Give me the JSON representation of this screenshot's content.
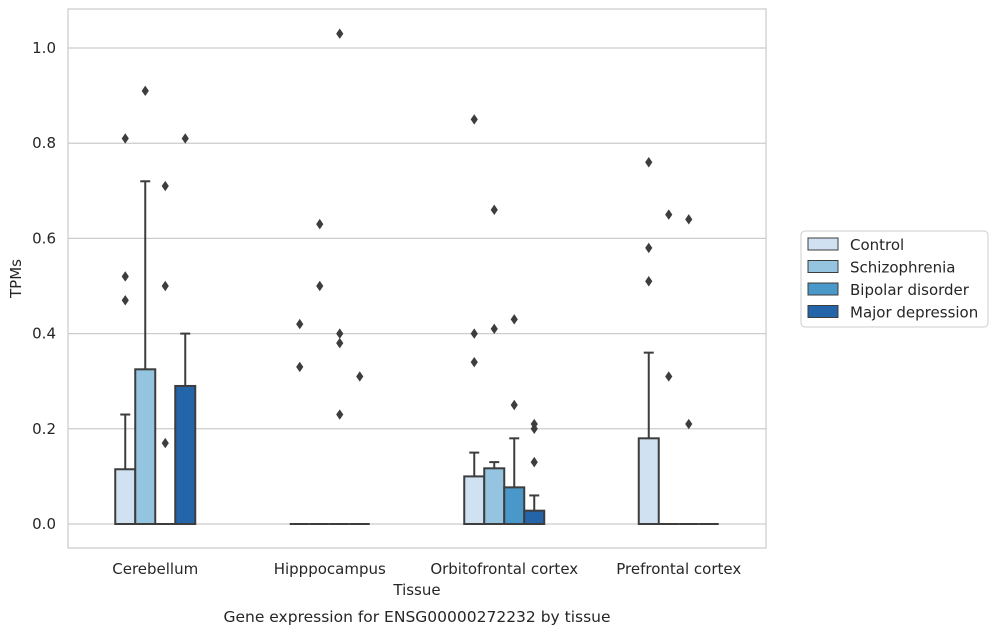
{
  "chart_data": {
    "type": "box",
    "title": "Gene expression for ENSG00000272232 by tissue",
    "xlabel": "Tissue",
    "ylabel": "TPMs",
    "ylim": [
      -0.05,
      1.08
    ],
    "yticks": [
      0.0,
      0.2,
      0.4,
      0.6,
      0.8,
      1.0
    ],
    "ytick_labels": [
      "0.0",
      "0.2",
      "0.4",
      "0.6",
      "0.8",
      "1.0"
    ],
    "grid": true,
    "legend_position": "outside-right",
    "categories": [
      "Cerebellum",
      "Hipppocampus",
      "Orbitofrontal cortex",
      "Prefrontal cortex"
    ],
    "series": [
      {
        "name": "Control",
        "color": "#d0e1f2",
        "boxes": [
          {
            "q1": 0.0,
            "median": 0.0,
            "q3": 0.115,
            "whisker_low": 0.0,
            "whisker_high": 0.23,
            "outliers": [
              0.47,
              0.52,
              0.81
            ]
          },
          {
            "q1": 0.0,
            "median": 0.0,
            "q3": 0.0,
            "whisker_low": 0.0,
            "whisker_high": 0.0,
            "outliers": [
              0.33,
              0.42
            ]
          },
          {
            "q1": 0.0,
            "median": 0.0,
            "q3": 0.1,
            "whisker_low": 0.0,
            "whisker_high": 0.15,
            "outliers": [
              0.34,
              0.4,
              0.85
            ]
          },
          {
            "q1": 0.0,
            "median": 0.0,
            "q3": 0.18,
            "whisker_low": 0.0,
            "whisker_high": 0.36,
            "outliers": [
              0.51,
              0.58,
              0.76
            ]
          }
        ]
      },
      {
        "name": "Schizophrenia",
        "color": "#94c4df",
        "boxes": [
          {
            "q1": 0.0,
            "median": 0.0,
            "q3": 0.325,
            "whisker_low": 0.0,
            "whisker_high": 0.72,
            "outliers": [
              0.91
            ]
          },
          {
            "q1": 0.0,
            "median": 0.0,
            "q3": 0.0,
            "whisker_low": 0.0,
            "whisker_high": 0.0,
            "outliers": [
              0.5,
              0.63
            ]
          },
          {
            "q1": 0.0,
            "median": 0.0,
            "q3": 0.117,
            "whisker_low": 0.0,
            "whisker_high": 0.13,
            "outliers": [
              0.41,
              0.66
            ]
          },
          {
            "q1": 0.0,
            "median": 0.0,
            "q3": 0.0,
            "whisker_low": 0.0,
            "whisker_high": 0.0,
            "outliers": [
              0.31,
              0.65
            ]
          }
        ]
      },
      {
        "name": "Bipolar disorder",
        "color": "#4a98c9",
        "boxes": [
          {
            "q1": 0.0,
            "median": 0.0,
            "q3": 0.0,
            "whisker_low": 0.0,
            "whisker_high": 0.0,
            "outliers": [
              0.17,
              0.5,
              0.71
            ]
          },
          {
            "q1": 0.0,
            "median": 0.0,
            "q3": 0.0,
            "whisker_low": 0.0,
            "whisker_high": 0.0,
            "outliers": [
              0.23,
              0.38,
              0.4,
              1.03
            ]
          },
          {
            "q1": 0.0,
            "median": 0.0,
            "q3": 0.077,
            "whisker_low": 0.0,
            "whisker_high": 0.18,
            "outliers": [
              0.25,
              0.43
            ]
          },
          {
            "q1": 0.0,
            "median": 0.0,
            "q3": 0.0,
            "whisker_low": 0.0,
            "whisker_high": 0.0,
            "outliers": [
              0.21,
              0.64
            ]
          }
        ]
      },
      {
        "name": "Major depression",
        "color": "#2464a8",
        "boxes": [
          {
            "q1": 0.0,
            "median": 0.0,
            "q3": 0.29,
            "whisker_low": 0.0,
            "whisker_high": 0.4,
            "outliers": [
              0.81
            ]
          },
          {
            "q1": 0.0,
            "median": 0.0,
            "q3": 0.0,
            "whisker_low": 0.0,
            "whisker_high": 0.0,
            "outliers": [
              0.31
            ]
          },
          {
            "q1": 0.0,
            "median": 0.0,
            "q3": 0.028,
            "whisker_low": 0.0,
            "whisker_high": 0.06,
            "outliers": [
              0.13,
              0.2,
              0.21
            ]
          },
          {
            "q1": 0.0,
            "median": 0.0,
            "q3": 0.0,
            "whisker_low": 0.0,
            "whisker_high": 0.0,
            "outliers": []
          }
        ]
      }
    ]
  }
}
